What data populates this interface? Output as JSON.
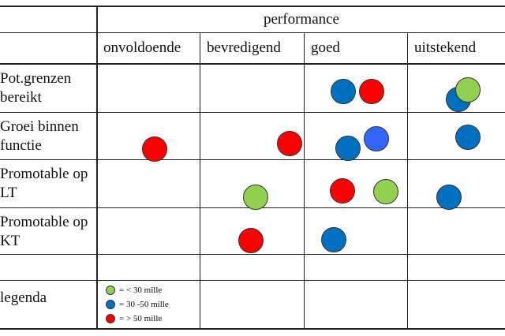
{
  "header": {
    "title": "performance"
  },
  "columns": [
    {
      "label": "onvoldoende"
    },
    {
      "label": "bevredigend"
    },
    {
      "label": "goed"
    },
    {
      "label": "uitstekend"
    }
  ],
  "rows": [
    {
      "label": "Pot.grenzen bereikt"
    },
    {
      "label": "Groei binnen functie"
    },
    {
      "label": "Promotable op LT"
    },
    {
      "label": "Promotable op KT"
    },
    {
      "label": ""
    },
    {
      "label": "legenda"
    }
  ],
  "colors": {
    "green": "#92d050",
    "blue": "#0070c0",
    "red": "#ff0000",
    "light_blue": "#3366ff",
    "grid": "#222222"
  },
  "legend": [
    {
      "color": "green",
      "label": "= < 30 mille"
    },
    {
      "color": "blue",
      "label": "= 30 -50 mille"
    },
    {
      "color": "red",
      "label": "= > 50 mille"
    }
  ],
  "points": [
    {
      "row": 0,
      "column": 2,
      "color": "blue"
    },
    {
      "row": 0,
      "column": 2,
      "color": "red"
    },
    {
      "row": 0,
      "column": 3,
      "color": "blue"
    },
    {
      "row": 0,
      "column": 3,
      "color": "green"
    },
    {
      "row": 1,
      "column": 0,
      "color": "red"
    },
    {
      "row": 1,
      "column": 1,
      "color": "red"
    },
    {
      "row": 1,
      "column": 2,
      "color": "blue"
    },
    {
      "row": 1,
      "column": 2,
      "color": "light_blue"
    },
    {
      "row": 1,
      "column": 3,
      "color": "blue"
    },
    {
      "row": 2,
      "column": 1,
      "color": "green"
    },
    {
      "row": 2,
      "column": 2,
      "color": "red"
    },
    {
      "row": 2,
      "column": 2,
      "color": "green"
    },
    {
      "row": 2,
      "column": 3,
      "color": "blue"
    },
    {
      "row": 3,
      "column": 1,
      "color": "red"
    },
    {
      "row": 3,
      "column": 2,
      "color": "blue"
    }
  ]
}
